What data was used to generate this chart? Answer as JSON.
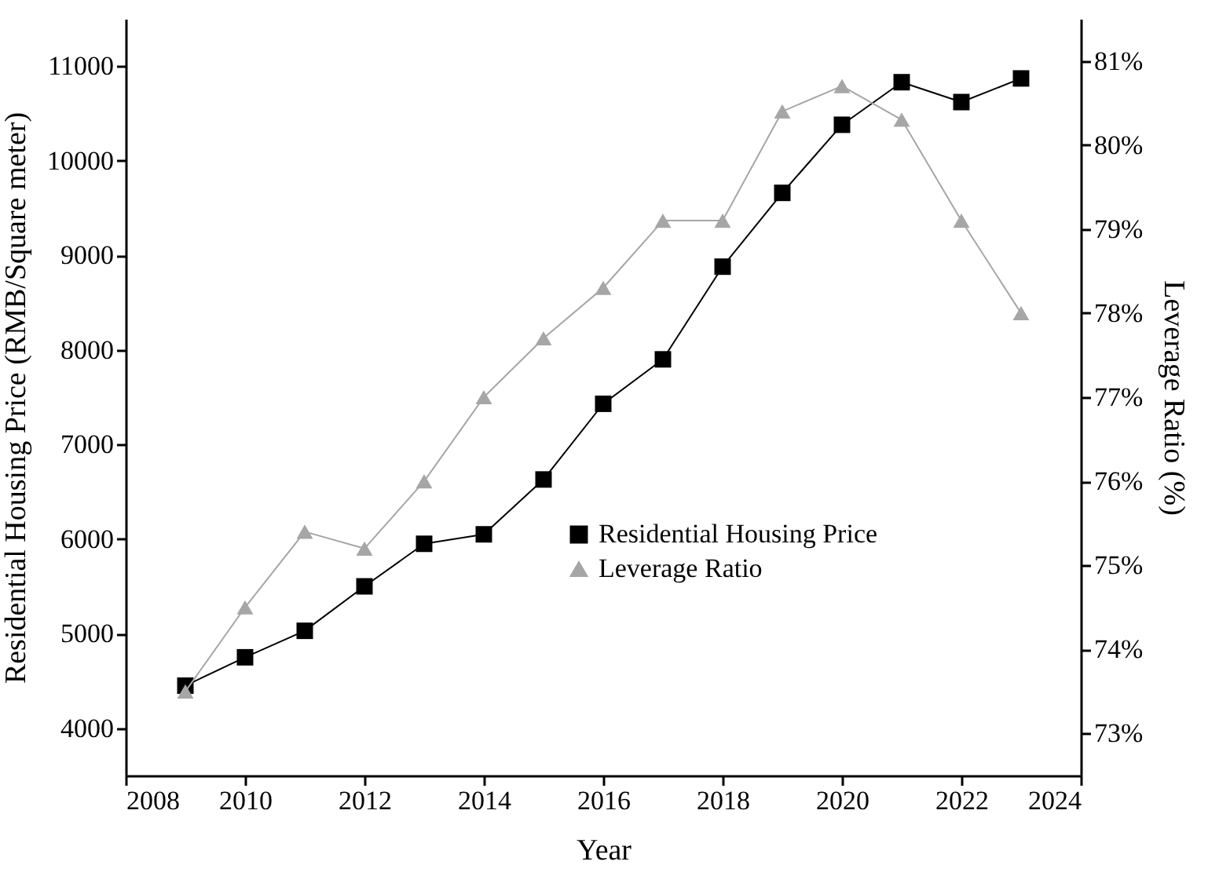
{
  "chart_data": {
    "type": "line",
    "xlabel": "Year",
    "ylabel": "Residential Housing Price (RMB/Square meter)",
    "y2label": "Leverage Ratio (%)",
    "x": [
      2009,
      2010,
      2011,
      2012,
      2013,
      2014,
      2015,
      2016,
      2017,
      2018,
      2019,
      2020,
      2021,
      2022,
      2023
    ],
    "series": [
      {
        "name": "Residential Housing Price",
        "color": "#000000",
        "marker": "square",
        "values": [
          4450,
          4750,
          5030,
          5500,
          5950,
          6050,
          6630,
          7430,
          7900,
          8880,
          9660,
          10380,
          10830,
          10620,
          10870
        ]
      },
      {
        "name": "Leverage Ratio",
        "color": "#a6a6a6",
        "marker": "triangle",
        "axis": "y2",
        "values": [
          73.5,
          74.5,
          75.4,
          75.2,
          76.0,
          77.0,
          77.7,
          78.3,
          79.1,
          79.1,
          80.4,
          80.7,
          80.3,
          79.1,
          78.0
        ]
      }
    ],
    "xlim": [
      2008,
      2024
    ],
    "xticks": [
      2008,
      2010,
      2012,
      2014,
      2016,
      2018,
      2020,
      2022,
      2024
    ],
    "ylim": [
      3500,
      11500
    ],
    "yticks": [
      4000,
      5000,
      6000,
      7000,
      8000,
      9000,
      10000,
      11000
    ],
    "y2lim": [
      72.5,
      81.5
    ],
    "y2ticks": [
      {
        "value": 73,
        "label": "73%"
      },
      {
        "value": 74,
        "label": "74%"
      },
      {
        "value": 75,
        "label": "75%"
      },
      {
        "value": 76,
        "label": "76%"
      },
      {
        "value": 77,
        "label": "77%"
      },
      {
        "value": 78,
        "label": "78%"
      },
      {
        "value": 79,
        "label": "79%"
      },
      {
        "value": 80,
        "label": "80%"
      },
      {
        "value": 81,
        "label": "81%"
      }
    ],
    "grid": false,
    "legend": "bottom right",
    "line_style": "solid"
  }
}
